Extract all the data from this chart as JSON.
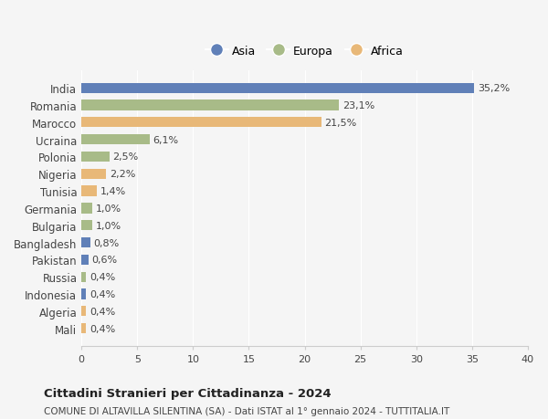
{
  "countries": [
    "India",
    "Romania",
    "Marocco",
    "Ucraina",
    "Polonia",
    "Nigeria",
    "Tunisia",
    "Germania",
    "Bulgaria",
    "Bangladesh",
    "Pakistan",
    "Russia",
    "Indonesia",
    "Algeria",
    "Mali"
  ],
  "values": [
    35.2,
    23.1,
    21.5,
    6.1,
    2.5,
    2.2,
    1.4,
    1.0,
    1.0,
    0.8,
    0.6,
    0.4,
    0.4,
    0.4,
    0.4
  ],
  "labels": [
    "35,2%",
    "23,1%",
    "21,5%",
    "6,1%",
    "2,5%",
    "2,2%",
    "1,4%",
    "1,0%",
    "1,0%",
    "0,8%",
    "0,6%",
    "0,4%",
    "0,4%",
    "0,4%",
    "0,4%"
  ],
  "continents": [
    "Asia",
    "Europa",
    "Africa",
    "Europa",
    "Europa",
    "Africa",
    "Africa",
    "Europa",
    "Europa",
    "Asia",
    "Asia",
    "Europa",
    "Asia",
    "Africa",
    "Africa"
  ],
  "colors": {
    "Asia": "#6080b8",
    "Europa": "#a8bb88",
    "Africa": "#e8b878"
  },
  "bg_color": "#f5f5f5",
  "title": "Cittadini Stranieri per Cittadinanza - 2024",
  "subtitle": "COMUNE DI ALTAVILLA SILENTINA (SA) - Dati ISTAT al 1° gennaio 2024 - TUTTITALIA.IT",
  "xlim": [
    0,
    40
  ],
  "xticks": [
    0,
    5,
    10,
    15,
    20,
    25,
    30,
    35,
    40
  ],
  "legend_order": [
    "Asia",
    "Europa",
    "Africa"
  ]
}
